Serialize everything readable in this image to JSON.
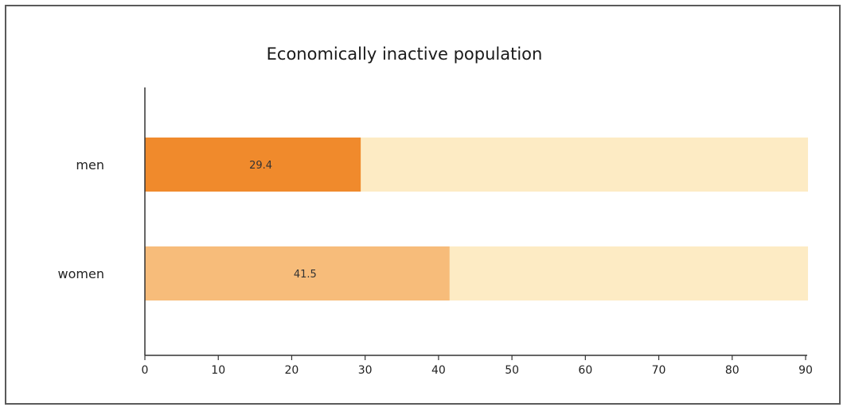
{
  "chart_data": {
    "type": "bar",
    "orientation": "horizontal",
    "title": "Economically inactive population",
    "xlabel": "",
    "ylabel": "",
    "categories": [
      "men",
      "women"
    ],
    "series": [
      {
        "values": [
          29.4,
          41.5
        ]
      }
    ],
    "data_labels": [
      "29.4",
      "41.5"
    ],
    "background_bar_value": 90,
    "xlim": [
      0,
      90
    ],
    "xticks": [
      0,
      10,
      20,
      30,
      40,
      50,
      60,
      70,
      80,
      90
    ],
    "grid": false,
    "legend": "none",
    "colors": {
      "bars": [
        "#f08a2c",
        "#f7bc7a"
      ],
      "track": "#fdebc4",
      "axis": "#333333"
    }
  }
}
